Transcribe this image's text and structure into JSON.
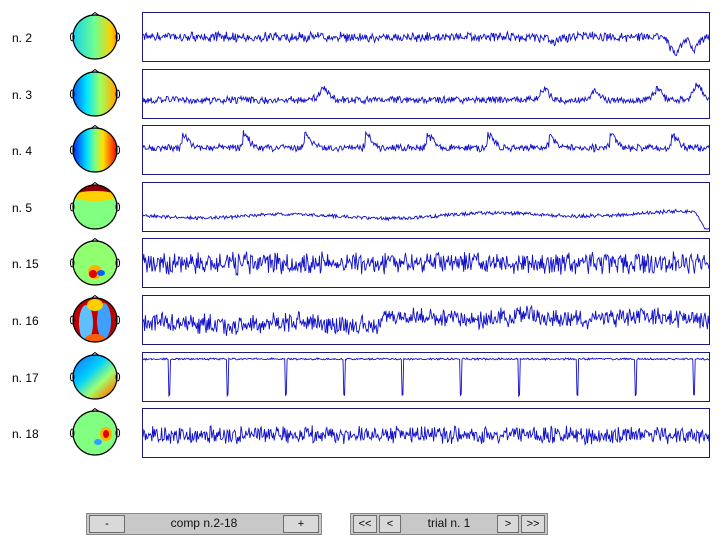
{
  "components": [
    {
      "label": "n. 2",
      "map": "map-2"
    },
    {
      "label": "n. 3",
      "map": "map-3"
    },
    {
      "label": "n. 4",
      "map": "map-4"
    },
    {
      "label": "n. 5",
      "map": "map-5"
    },
    {
      "label": "n. 15",
      "map": "map-15"
    },
    {
      "label": "n. 16",
      "map": "map-16"
    },
    {
      "label": "n. 17",
      "map": "map-17"
    },
    {
      "label": "n. 18",
      "map": "map-18"
    }
  ],
  "controls": {
    "comp_minus": "-",
    "comp_range": "comp n.2-18",
    "comp_plus": "+",
    "first": "<<",
    "prev": "<",
    "trial": "trial n. 1",
    "next": ">",
    "last": ">>"
  },
  "colors": {
    "trace": "#1010c8",
    "panel_border": "#1a1a7a",
    "control_bg": "#c8c8c8"
  }
}
